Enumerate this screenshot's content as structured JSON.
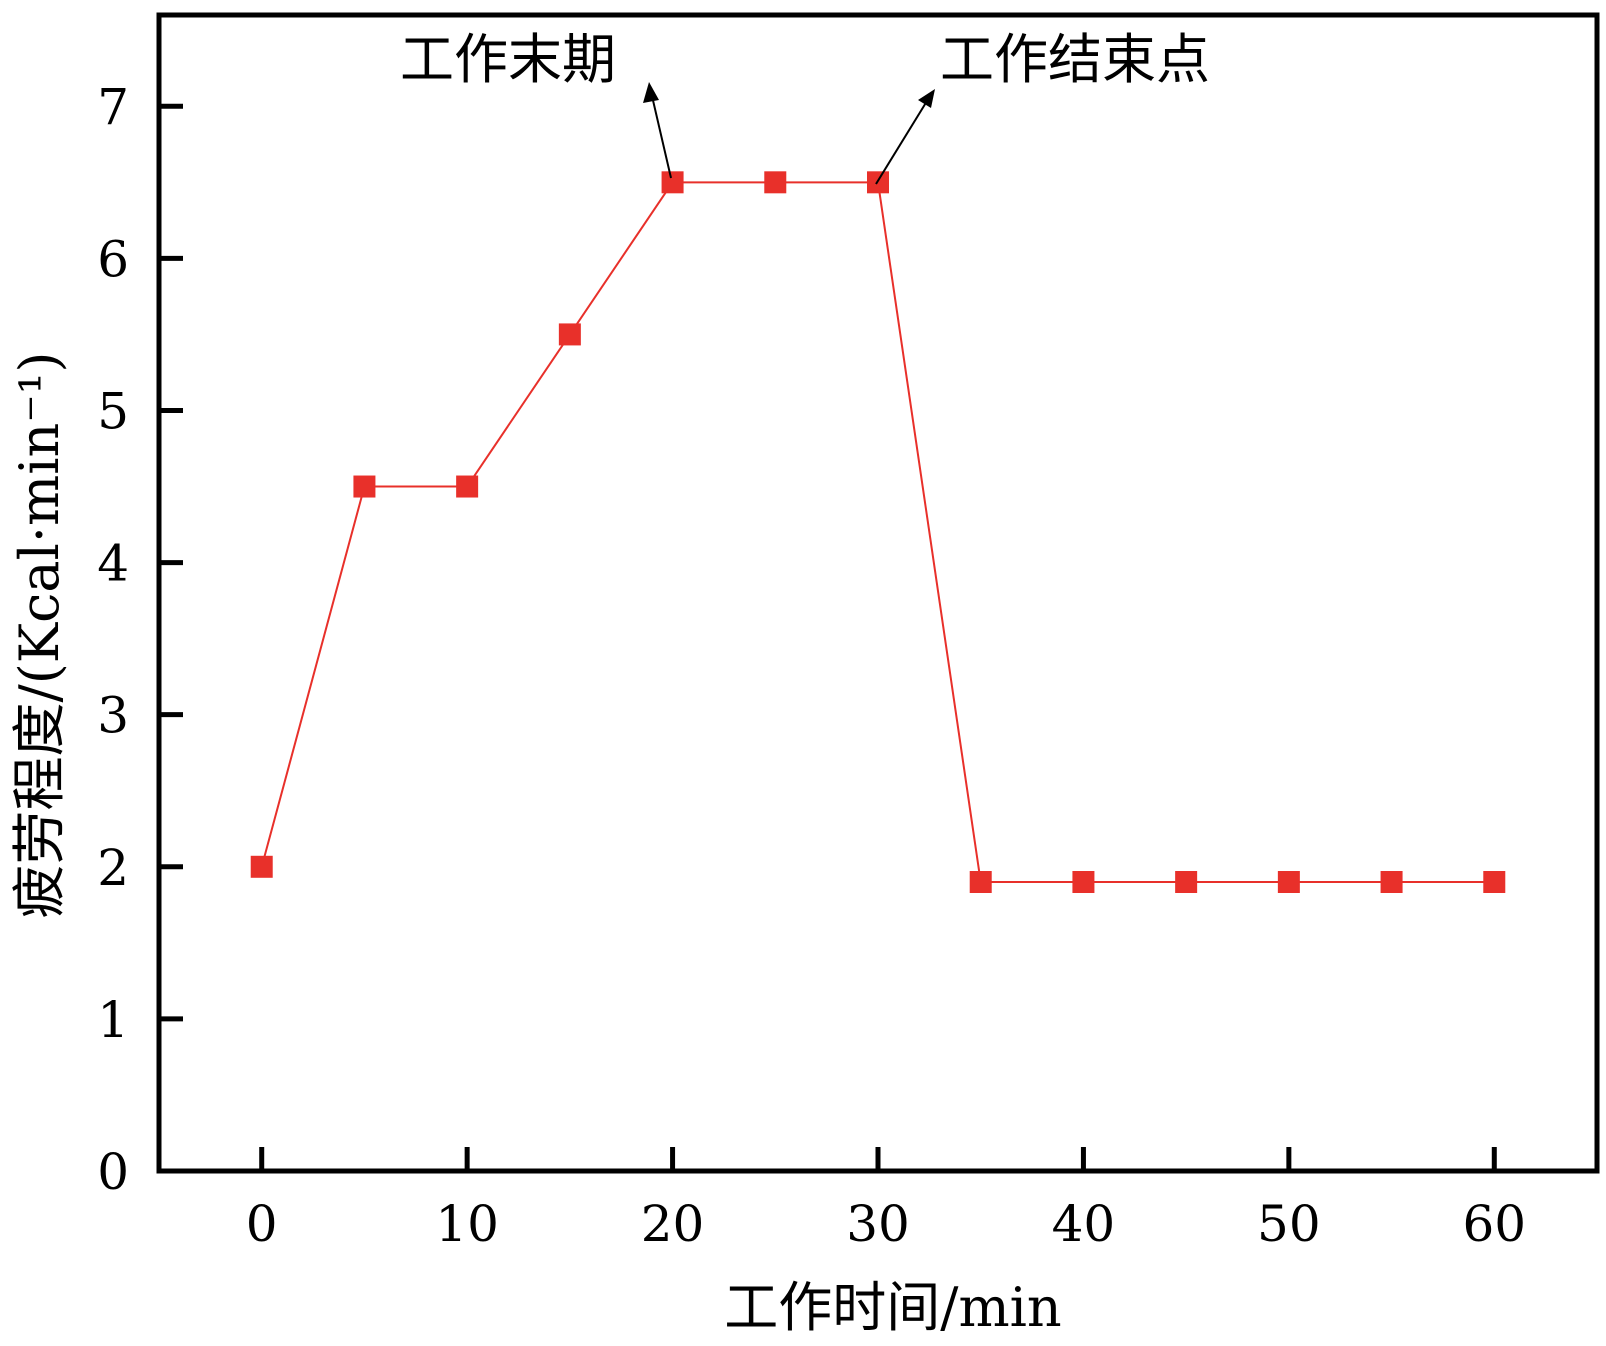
{
  "chart_data": {
    "type": "line",
    "title": "",
    "xlabel": "工作时间/min",
    "ylabel": "疲劳程度/(Kcal·min⁻¹)",
    "xlim": [
      -5,
      65
    ],
    "ylim": [
      0,
      7.6
    ],
    "xticks": [
      0,
      10,
      20,
      30,
      40,
      50,
      60
    ],
    "yticks": [
      0,
      1,
      2,
      3,
      4,
      5,
      6,
      7
    ],
    "grid": false,
    "series": [
      {
        "name": "疲劳程度",
        "color": "#e8302a",
        "marker": "square",
        "x": [
          0,
          5,
          10,
          15,
          20,
          25,
          30,
          35,
          40,
          45,
          50,
          55,
          60
        ],
        "y": [
          2.0,
          4.5,
          4.5,
          5.5,
          6.5,
          6.5,
          6.5,
          1.9,
          1.9,
          1.9,
          1.9,
          1.9,
          1.9
        ]
      }
    ],
    "annotations": [
      {
        "text": "工作末期",
        "point": [
          20,
          6.5
        ]
      },
      {
        "text": "工作结束点",
        "point": [
          30,
          6.5
        ]
      }
    ]
  }
}
